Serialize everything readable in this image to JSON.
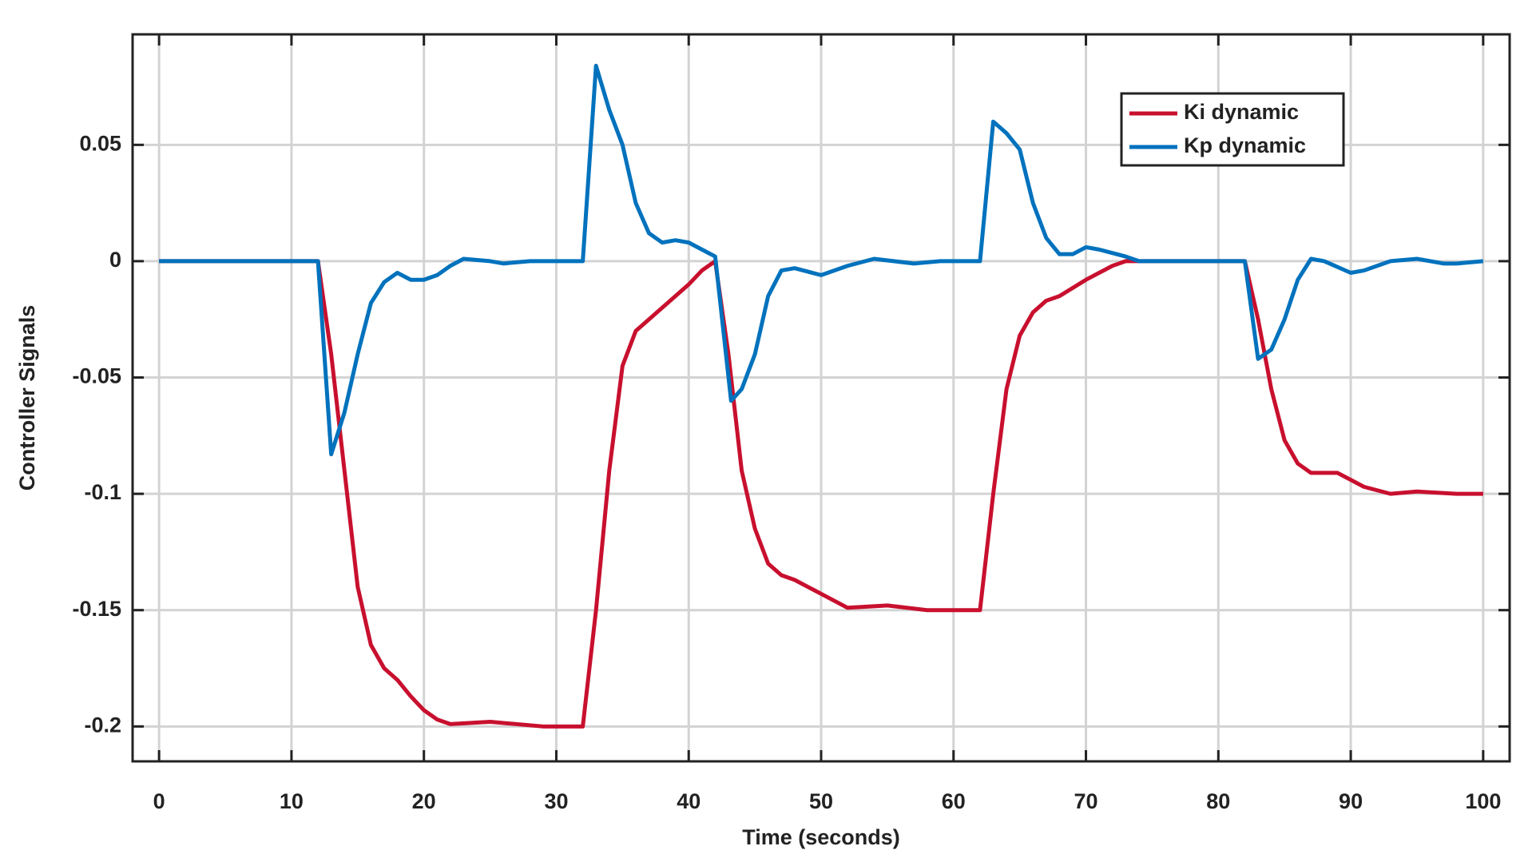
{
  "chart_data": {
    "type": "line",
    "xlabel": "Time (seconds)",
    "ylabel": "Controller Signals",
    "xlim": [
      -2,
      102
    ],
    "ylim": [
      -0.215,
      0.0975
    ],
    "xticks": [
      0,
      10,
      20,
      30,
      40,
      50,
      60,
      70,
      80,
      90,
      100
    ],
    "yticks": [
      -0.2,
      -0.15,
      -0.1,
      -0.05,
      0,
      0.05
    ],
    "grid": true,
    "legend": "upper right",
    "series": [
      {
        "name": "Ki dynamic",
        "color": "#c8102e",
        "x": [
          0,
          12,
          13,
          14,
          15,
          16,
          17,
          18,
          19,
          20,
          21,
          22,
          25,
          29,
          32,
          33,
          34,
          35,
          36,
          37,
          38,
          40,
          41,
          42,
          43,
          44,
          45,
          46,
          47,
          48,
          50,
          52,
          55,
          58,
          62,
          63,
          64,
          65,
          66,
          67,
          68,
          70,
          72,
          73,
          78,
          82,
          83,
          84,
          85,
          86,
          87,
          89,
          91,
          93,
          95,
          98,
          100
        ],
        "values": [
          0,
          0,
          -0.04,
          -0.09,
          -0.14,
          -0.165,
          -0.175,
          -0.18,
          -0.187,
          -0.193,
          -0.197,
          -0.199,
          -0.198,
          -0.2,
          -0.2,
          -0.15,
          -0.09,
          -0.045,
          -0.03,
          -0.025,
          -0.02,
          -0.01,
          -0.004,
          0,
          -0.04,
          -0.09,
          -0.115,
          -0.13,
          -0.135,
          -0.137,
          -0.143,
          -0.149,
          -0.148,
          -0.15,
          -0.15,
          -0.1,
          -0.055,
          -0.032,
          -0.022,
          -0.017,
          -0.015,
          -0.008,
          -0.002,
          0,
          0,
          0,
          -0.025,
          -0.055,
          -0.077,
          -0.087,
          -0.091,
          -0.091,
          -0.097,
          -0.1,
          -0.099,
          -0.1,
          -0.1
        ]
      },
      {
        "name": "Kp dynamic",
        "color": "#0072bd",
        "x": [
          0,
          12,
          13,
          14,
          15,
          16,
          17,
          18,
          19,
          20,
          21,
          22,
          23,
          25,
          26,
          28,
          32,
          33,
          34,
          35,
          36,
          37,
          38,
          39,
          40,
          41,
          42,
          43.2,
          44,
          45,
          46,
          47,
          48,
          50,
          52,
          54,
          57,
          59,
          62,
          63,
          64,
          65,
          66,
          67,
          68,
          69,
          70,
          71,
          73,
          74,
          80,
          82,
          83,
          84,
          85,
          86,
          87,
          88,
          90,
          91,
          93,
          95,
          97,
          98,
          100
        ],
        "values": [
          0,
          0,
          -0.083,
          -0.065,
          -0.04,
          -0.018,
          -0.009,
          -0.005,
          -0.008,
          -0.008,
          -0.006,
          -0.002,
          0.001,
          0,
          -0.001,
          0,
          0,
          0.084,
          0.065,
          0.05,
          0.025,
          0.012,
          0.008,
          0.009,
          0.008,
          0.005,
          0.002,
          -0.06,
          -0.055,
          -0.04,
          -0.015,
          -0.004,
          -0.003,
          -0.006,
          -0.002,
          0.001,
          -0.001,
          0,
          0,
          0.06,
          0.055,
          0.048,
          0.025,
          0.01,
          0.003,
          0.003,
          0.006,
          0.005,
          0.002,
          0,
          0,
          0,
          -0.042,
          -0.038,
          -0.025,
          -0.008,
          0.001,
          0,
          -0.005,
          -0.004,
          0,
          0.001,
          -0.001,
          -0.001,
          0
        ]
      }
    ]
  }
}
